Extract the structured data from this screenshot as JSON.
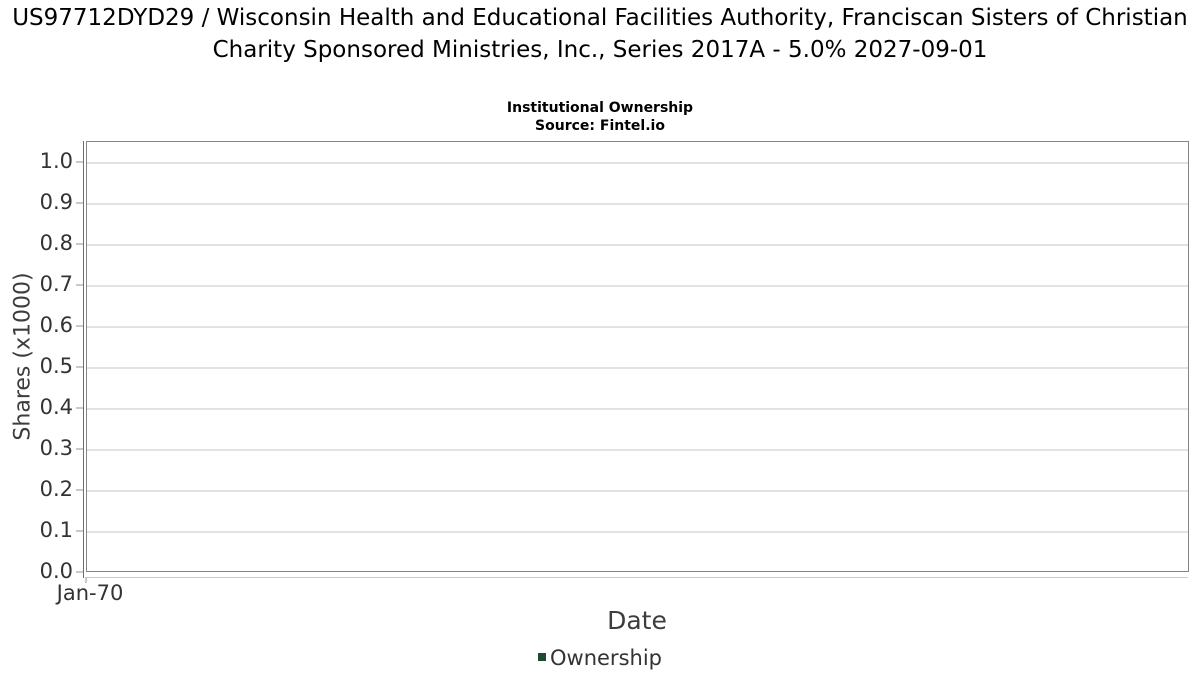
{
  "header": {
    "title": "US97712DYD29 / Wisconsin Health and Educational Facilities Authority, Franciscan Sisters of Christian Charity Sponsored Ministries, Inc., Series 2017A - 5.0% 2027-09-01",
    "subtitle": "Institutional Ownership",
    "source": "Source: Fintel.io"
  },
  "chart_data": {
    "type": "line",
    "title": "Institutional Ownership",
    "subtitle": "Source: Fintel.io",
    "xlabel": "Date",
    "ylabel": "Shares (x1000)",
    "x_tick_labels": [
      "Jan-70"
    ],
    "y_tick_labels": [
      "0.0",
      "0.1",
      "0.2",
      "0.3",
      "0.4",
      "0.5",
      "0.6",
      "0.7",
      "0.8",
      "0.9",
      "1.0"
    ],
    "ylim": [
      0.0,
      1.05
    ],
    "grid": true,
    "legend_position": "bottom-center",
    "series": [
      {
        "name": "Ownership",
        "color": "#1a4d2e",
        "x": [],
        "values": []
      }
    ]
  },
  "colors": {
    "background": "#ffffff",
    "plot_border": "#858585",
    "gridline": "#e2e2e2",
    "axis_line": "#6e6e6e",
    "tick_mark": "#c9c9c9",
    "title_text": "#000000",
    "axis_text": "#3d3d3d",
    "tick_text": "#333333",
    "legend_marker": "#1a4d2e"
  }
}
